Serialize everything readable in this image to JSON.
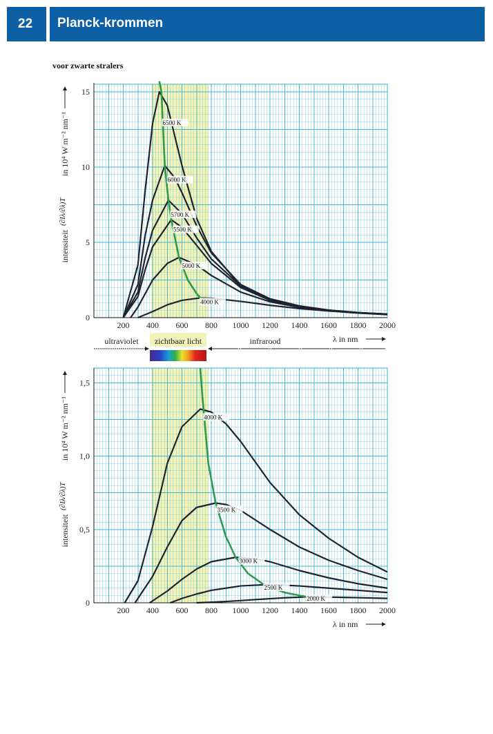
{
  "header": {
    "page_number": "22",
    "title": "Planck-krommen"
  },
  "subtitle": "voor zwarte stralers",
  "colors": {
    "grid_line": "#3db3d0",
    "visible_band": "#f3f2b8",
    "curve": "#1f2230",
    "wien_line": "#2e9a4c",
    "header_bg": "#0d5fa6"
  },
  "region_labels": {
    "ultraviolet": "ultraviolet",
    "visible": "zichtbaar licht",
    "infrared": "infrarood"
  },
  "chart_data": [
    {
      "type": "line",
      "title": "",
      "xlabel": "λ in nm",
      "ylabel": "intensiteit (∂Iλ/∂λ)T in 10⁴ W m⁻² nm⁻¹",
      "ylabel_parts": {
        "prefix": "intensiteit",
        "fraction": "(∂Iλ/∂λ)T",
        "suffix": "in 10⁴ W m⁻² nm⁻¹"
      },
      "xlim": [
        0,
        2000
      ],
      "ylim": [
        0,
        15.5
      ],
      "x_ticks": [
        "200",
        "400",
        "600",
        "800",
        "1000",
        "1200",
        "1400",
        "1600",
        "1800",
        "2000"
      ],
      "y_ticks": [
        "0",
        "5",
        "10",
        "15"
      ],
      "y_tick_values": [
        0,
        5,
        10,
        15
      ],
      "visible_band": [
        390,
        780
      ],
      "grid": true,
      "series": [
        {
          "name": "6500 K",
          "x": [
            200,
            300,
            350,
            400,
            446,
            500,
            600,
            700,
            800,
            1000,
            1200,
            1400,
            1600,
            1800,
            2000
          ],
          "y": [
            0.0,
            3.5,
            8.5,
            12.9,
            15.0,
            14.1,
            10.1,
            6.6,
            4.4,
            2.1,
            1.15,
            0.7,
            0.45,
            0.3,
            0.2
          ]
        },
        {
          "name": "6000 K",
          "x": [
            200,
            300,
            350,
            400,
            483,
            550,
            600,
            700,
            800,
            1000,
            1200,
            1400,
            1600,
            1800,
            2000
          ],
          "y": [
            0.0,
            2.2,
            5.5,
            7.8,
            10.1,
            9.3,
            8.3,
            6.1,
            4.3,
            2.2,
            1.25,
            0.78,
            0.5,
            0.34,
            0.23
          ]
        },
        {
          "name": "5700 K",
          "x": [
            200,
            300,
            350,
            400,
            508,
            600,
            700,
            800,
            1000,
            1200,
            1400,
            1600,
            1800,
            2000
          ],
          "y": [
            0.0,
            1.7,
            4.0,
            5.8,
            7.8,
            6.9,
            5.3,
            3.9,
            2.1,
            1.2,
            0.76,
            0.5,
            0.33,
            0.23
          ]
        },
        {
          "name": "5500 K",
          "x": [
            200,
            300,
            350,
            400,
            527,
            600,
            700,
            800,
            1000,
            1200,
            1400,
            1600,
            1800,
            2000
          ],
          "y": [
            0.0,
            1.4,
            3.2,
            4.7,
            6.5,
            6.0,
            4.8,
            3.6,
            2.0,
            1.15,
            0.73,
            0.48,
            0.33,
            0.23
          ]
        },
        {
          "name": "5000 K",
          "x": [
            250,
            300,
            400,
            500,
            580,
            700,
            800,
            1000,
            1200,
            1400,
            1600,
            1800,
            2000
          ],
          "y": [
            0.0,
            0.7,
            2.5,
            3.6,
            4.0,
            3.5,
            2.8,
            1.7,
            1.05,
            0.68,
            0.46,
            0.32,
            0.23
          ]
        },
        {
          "name": "4000 K",
          "x": [
            300,
            400,
            500,
            600,
            725,
            800,
            1000,
            1200,
            1400,
            1600,
            1800,
            2000
          ],
          "y": [
            0.0,
            0.4,
            0.85,
            1.15,
            1.31,
            1.29,
            1.08,
            0.82,
            0.6,
            0.44,
            0.32,
            0.24
          ]
        }
      ],
      "wien_curve": {
        "x": [
          446,
          460,
          483,
          508,
          527,
          580,
          640,
          700,
          725,
          760
        ],
        "y": [
          15.7,
          15.0,
          10.1,
          7.8,
          6.5,
          4.0,
          2.5,
          1.6,
          1.31,
          1.1
        ]
      }
    },
    {
      "type": "line",
      "title": "",
      "xlabel": "λ in nm",
      "ylabel": "intensiteit (∂Iλ/∂λ)T in 10⁴ W m⁻² nm⁻¹",
      "ylabel_parts": {
        "prefix": "intensiteit",
        "fraction": "(∂Iλ/∂λ)T",
        "suffix": "in 10⁴ W m⁻² nm⁻¹"
      },
      "xlim": [
        0,
        2000
      ],
      "ylim": [
        0,
        1.6
      ],
      "x_ticks": [
        "200",
        "400",
        "600",
        "800",
        "1000",
        "1200",
        "1400",
        "1600",
        "1800",
        "2000"
      ],
      "y_ticks": [
        "0",
        "0,5",
        "1,0",
        "1,5"
      ],
      "y_tick_values": [
        0,
        0.5,
        1.0,
        1.5
      ],
      "visible_band": [
        390,
        780
      ],
      "grid": true,
      "series": [
        {
          "name": "4000 K",
          "x": [
            210,
            300,
            400,
            500,
            600,
            725,
            800,
            900,
            1000,
            1200,
            1400,
            1600,
            1800,
            2000
          ],
          "y": [
            0.0,
            0.15,
            0.52,
            0.95,
            1.2,
            1.32,
            1.3,
            1.22,
            1.1,
            0.82,
            0.6,
            0.44,
            0.31,
            0.21
          ]
        },
        {
          "name": "3500 K",
          "x": [
            280,
            400,
            500,
            600,
            700,
            830,
            900,
            1000,
            1200,
            1400,
            1600,
            1800,
            2000
          ],
          "y": [
            0.0,
            0.18,
            0.38,
            0.56,
            0.65,
            0.68,
            0.67,
            0.63,
            0.5,
            0.38,
            0.29,
            0.22,
            0.16
          ]
        },
        {
          "name": "3000 K",
          "x": [
            380,
            500,
            600,
            700,
            800,
            966,
            1100,
            1200,
            1400,
            1600,
            1800,
            2000
          ],
          "y": [
            0.0,
            0.08,
            0.16,
            0.23,
            0.28,
            0.31,
            0.3,
            0.28,
            0.22,
            0.17,
            0.13,
            0.1
          ]
        },
        {
          "name": "2500 K",
          "x": [
            520,
            600,
            700,
            800,
            900,
            1000,
            1159,
            1300,
            1400,
            1600,
            1800,
            2000
          ],
          "y": [
            0.0,
            0.03,
            0.06,
            0.085,
            0.1,
            0.115,
            0.123,
            0.12,
            0.115,
            0.1,
            0.085,
            0.07
          ]
        },
        {
          "name": "2000 K",
          "x": [
            700,
            800,
            900,
            1000,
            1100,
            1200,
            1300,
            1449,
            1600,
            1800,
            2000
          ],
          "y": [
            0.0,
            0.004,
            0.009,
            0.015,
            0.022,
            0.028,
            0.034,
            0.04,
            0.039,
            0.035,
            0.03
          ]
        }
      ],
      "wien_curve": {
        "x": [
          725,
          740,
          780,
          830,
          900,
          966,
          1050,
          1159,
          1300,
          1449
        ],
        "y": [
          1.6,
          1.4,
          0.95,
          0.68,
          0.45,
          0.31,
          0.2,
          0.123,
          0.07,
          0.04
        ]
      }
    }
  ]
}
